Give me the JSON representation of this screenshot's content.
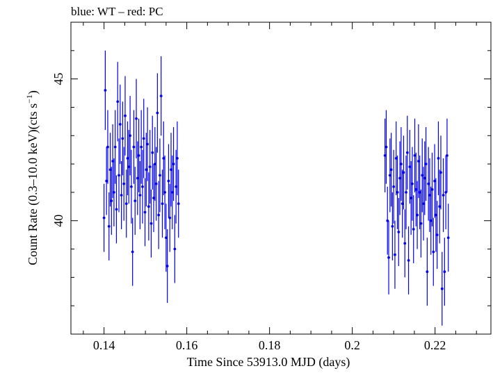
{
  "chart_data": {
    "type": "scatter",
    "title": "blue: WT – red: PC",
    "xlabel": "Time Since 53913.0 MJD (days)",
    "ylabel_main": "Count Rate (0.3–10.0 keV)(cts s",
    "ylabel_sup": "−1",
    "ylabel_end": ")",
    "xlim": [
      0.132,
      0.2335
    ],
    "ylim": [
      36.0,
      47.0
    ],
    "xticks": [
      0.14,
      0.16,
      0.18,
      0.2,
      0.22
    ],
    "xtick_labels": [
      "0.14",
      "0.16",
      "0.18",
      "0.2",
      "0.22"
    ],
    "yticks": [
      40,
      45
    ],
    "ytick_labels": [
      "40",
      "45"
    ],
    "grid": false,
    "series": [
      {
        "color": "#0000ee",
        "points": [
          [
            0.14,
            40.1,
            1.2
          ],
          [
            0.1403,
            44.6,
            1.4
          ],
          [
            0.1406,
            41.4,
            1.2
          ],
          [
            0.1409,
            42.6,
            1.3
          ],
          [
            0.1412,
            39.8,
            1.2
          ],
          [
            0.1415,
            41.8,
            1.3
          ],
          [
            0.1418,
            40.7,
            1.2
          ],
          [
            0.1421,
            42.1,
            1.3
          ],
          [
            0.1424,
            41.0,
            1.2
          ],
          [
            0.1427,
            42.6,
            1.3
          ],
          [
            0.143,
            40.4,
            1.2
          ],
          [
            0.1433,
            44.2,
            1.4
          ],
          [
            0.1436,
            41.6,
            1.3
          ],
          [
            0.1439,
            43.4,
            1.4
          ],
          [
            0.1442,
            40.9,
            1.2
          ],
          [
            0.1445,
            42.9,
            1.3
          ],
          [
            0.1448,
            41.3,
            1.3
          ],
          [
            0.1451,
            43.7,
            1.4
          ],
          [
            0.1454,
            40.6,
            1.2
          ],
          [
            0.1457,
            42.2,
            1.3
          ],
          [
            0.146,
            41.9,
            1.3
          ],
          [
            0.1463,
            43.0,
            1.4
          ],
          [
            0.1466,
            41.2,
            1.3
          ],
          [
            0.1469,
            38.9,
            1.2
          ],
          [
            0.1472,
            42.6,
            1.3
          ],
          [
            0.1475,
            40.7,
            1.2
          ],
          [
            0.1478,
            43.6,
            1.4
          ],
          [
            0.1481,
            41.5,
            1.3
          ],
          [
            0.1484,
            42.3,
            1.3
          ],
          [
            0.1487,
            40.9,
            1.2
          ],
          [
            0.149,
            42.6,
            1.3
          ],
          [
            0.1493,
            41.2,
            1.3
          ],
          [
            0.1496,
            42.9,
            1.4
          ],
          [
            0.1499,
            40.3,
            1.2
          ],
          [
            0.1502,
            41.8,
            1.3
          ],
          [
            0.1505,
            42.7,
            1.3
          ],
          [
            0.1508,
            40.5,
            1.2
          ],
          [
            0.1511,
            41.9,
            1.3
          ],
          [
            0.1514,
            39.9,
            1.2
          ],
          [
            0.1517,
            42.4,
            1.3
          ],
          [
            0.152,
            40.8,
            1.2
          ],
          [
            0.1523,
            42.0,
            1.3
          ],
          [
            0.1526,
            41.3,
            1.3
          ],
          [
            0.1529,
            43.8,
            1.4
          ],
          [
            0.1532,
            40.2,
            1.2
          ],
          [
            0.1535,
            41.6,
            1.3
          ],
          [
            0.1538,
            44.4,
            1.4
          ],
          [
            0.1541,
            40.6,
            1.2
          ],
          [
            0.1544,
            42.2,
            1.3
          ],
          [
            0.1547,
            41.0,
            1.3
          ],
          [
            0.155,
            39.4,
            1.2
          ],
          [
            0.1553,
            38.4,
            1.3
          ],
          [
            0.1556,
            41.4,
            1.3
          ],
          [
            0.1559,
            40.1,
            1.2
          ],
          [
            0.1562,
            41.8,
            1.3
          ],
          [
            0.1565,
            41.0,
            1.3
          ],
          [
            0.1568,
            42.0,
            1.3
          ],
          [
            0.1571,
            39.0,
            1.2
          ],
          [
            0.1574,
            41.2,
            1.3
          ],
          [
            0.1577,
            42.2,
            1.3
          ],
          [
            0.158,
            40.6,
            1.2
          ]
        ]
      },
      {
        "color": "#0000ee",
        "points": [
          [
            0.2079,
            42.3,
            1.3
          ],
          [
            0.2082,
            42.6,
            1.3
          ],
          [
            0.2085,
            40.0,
            1.2
          ],
          [
            0.2088,
            38.7,
            1.3
          ],
          [
            0.2091,
            41.6,
            1.3
          ],
          [
            0.2094,
            41.8,
            1.3
          ],
          [
            0.2097,
            39.8,
            1.2
          ],
          [
            0.21,
            41.2,
            1.3
          ],
          [
            0.2103,
            38.8,
            1.2
          ],
          [
            0.2106,
            42.2,
            1.3
          ],
          [
            0.2109,
            41.0,
            1.3
          ],
          [
            0.2112,
            39.6,
            1.2
          ],
          [
            0.2115,
            41.5,
            1.3
          ],
          [
            0.2118,
            42.0,
            1.3
          ],
          [
            0.2121,
            40.6,
            1.2
          ],
          [
            0.2124,
            41.7,
            1.3
          ],
          [
            0.2127,
            39.2,
            1.2
          ],
          [
            0.213,
            41.0,
            1.3
          ],
          [
            0.2133,
            42.4,
            1.3
          ],
          [
            0.2136,
            38.6,
            1.2
          ],
          [
            0.2139,
            41.9,
            1.3
          ],
          [
            0.2142,
            40.8,
            1.3
          ],
          [
            0.2145,
            41.3,
            1.3
          ],
          [
            0.2148,
            39.7,
            1.2
          ],
          [
            0.2151,
            42.3,
            1.3
          ],
          [
            0.2154,
            41.1,
            1.3
          ],
          [
            0.2157,
            40.2,
            1.2
          ],
          [
            0.216,
            42.1,
            1.3
          ],
          [
            0.2163,
            41.0,
            1.3
          ],
          [
            0.2166,
            39.9,
            1.2
          ],
          [
            0.2169,
            41.6,
            1.3
          ],
          [
            0.2172,
            40.6,
            1.3
          ],
          [
            0.2175,
            41.5,
            1.3
          ],
          [
            0.2178,
            42.0,
            1.3
          ],
          [
            0.2181,
            38.2,
            1.2
          ],
          [
            0.2184,
            41.3,
            1.3
          ],
          [
            0.2187,
            40.9,
            1.3
          ],
          [
            0.219,
            40.0,
            1.2
          ],
          [
            0.2193,
            41.1,
            1.3
          ],
          [
            0.2196,
            38.9,
            1.2
          ],
          [
            0.2199,
            41.4,
            1.3
          ],
          [
            0.2202,
            40.2,
            1.3
          ],
          [
            0.2205,
            39.5,
            1.2
          ],
          [
            0.2208,
            42.2,
            1.3
          ],
          [
            0.2211,
            40.5,
            1.3
          ],
          [
            0.2214,
            41.7,
            1.3
          ],
          [
            0.2217,
            37.6,
            1.3
          ],
          [
            0.222,
            40.9,
            1.3
          ],
          [
            0.2223,
            38.2,
            1.2
          ],
          [
            0.2226,
            41.0,
            1.3
          ],
          [
            0.2229,
            42.3,
            1.3
          ],
          [
            0.2232,
            39.4,
            1.2
          ]
        ]
      }
    ]
  }
}
